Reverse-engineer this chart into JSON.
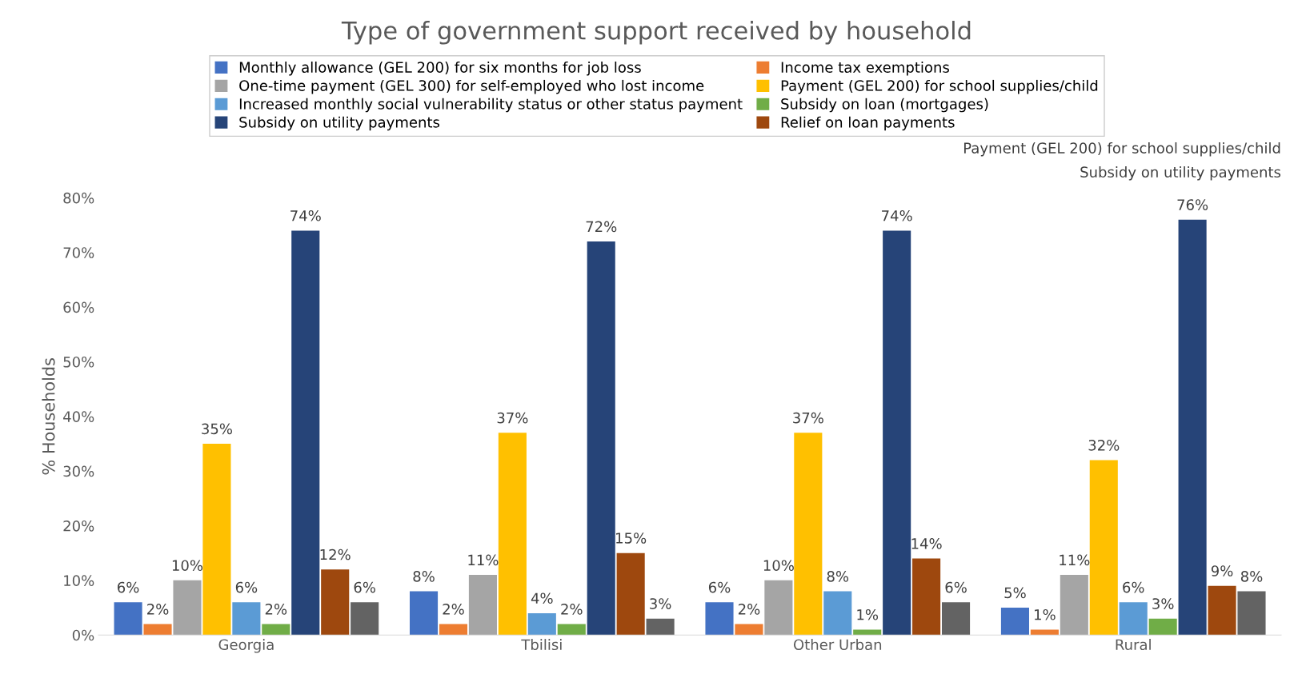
{
  "chart_data": {
    "type": "bar",
    "title": "Type of government support received by household",
    "ylabel": "% Households",
    "categories": [
      "Georgia",
      "Tbilisi",
      "Other Urban",
      "Rural"
    ],
    "series": [
      {
        "name": "Monthly allowance (GEL 200) for six months for job loss",
        "color": "#4472c4",
        "values": [
          6,
          8,
          6,
          5
        ],
        "value_labels": [
          "6%",
          "8%",
          "6%",
          "5%"
        ]
      },
      {
        "name": "Income tax exemptions",
        "color": "#ed7d31",
        "values": [
          2,
          2,
          2,
          1
        ],
        "value_labels": [
          "2%",
          "2%",
          "2%",
          "1%"
        ]
      },
      {
        "name": "One-time payment (GEL 300) for self-employed who lost income",
        "color": "#a5a5a5",
        "values": [
          10,
          11,
          10,
          11
        ],
        "value_labels": [
          "10%",
          "11%",
          "10%",
          "11%"
        ]
      },
      {
        "name": "Payment (GEL 200) for school supplies/child",
        "color": "#ffc000",
        "values": [
          35,
          37,
          37,
          32
        ],
        "value_labels": [
          "35%",
          "37%",
          "37%",
          "32%"
        ]
      },
      {
        "name": "Increased monthly social vulnerability status or other status payment",
        "color": "#5b9bd5",
        "values": [
          6,
          4,
          8,
          6
        ],
        "value_labels": [
          "6%",
          "4%",
          "8%",
          "6%"
        ]
      },
      {
        "name": "Subsidy on loan (mortgages)",
        "color": "#70ad47",
        "values": [
          2,
          2,
          1,
          3
        ],
        "value_labels": [
          "2%",
          "2%",
          "1%",
          "3%"
        ]
      },
      {
        "name": "Subsidy on utility payments",
        "color": "#264478",
        "values": [
          74,
          72,
          74,
          76
        ],
        "value_labels": [
          "74%",
          "72%",
          "74%",
          "76%"
        ]
      },
      {
        "name": "Relief on loan payments",
        "color": "#9e480e",
        "values": [
          12,
          15,
          14,
          9
        ],
        "value_labels": [
          "12%",
          "15%",
          "14%",
          "9%"
        ]
      },
      {
        "color": "#636363",
        "values": [
          6,
          3,
          6,
          8
        ],
        "value_labels": [
          "6%",
          "3%",
          "6%",
          "8%"
        ]
      }
    ],
    "annotations": [
      "Subsidy on utility payments",
      "Payment (GEL 200) for school supplies/child"
    ],
    "ylim": [
      0,
      80
    ],
    "yticks": [
      {
        "value": 0,
        "label": "0%"
      },
      {
        "value": 10,
        "label": "10%"
      },
      {
        "value": 20,
        "label": "20%"
      },
      {
        "value": 30,
        "label": "30%"
      },
      {
        "value": 40,
        "label": "40%"
      },
      {
        "value": 50,
        "label": "50%"
      },
      {
        "value": 60,
        "label": "60%"
      },
      {
        "value": 70,
        "label": "70%"
      },
      {
        "value": 80,
        "label": "80%"
      }
    ],
    "grid": false,
    "legend": "top"
  }
}
